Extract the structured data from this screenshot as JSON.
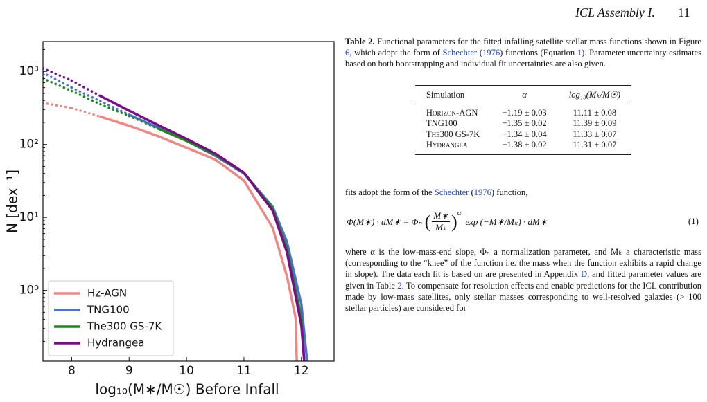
{
  "header": {
    "title": "ICL Assembly I.",
    "page": "11"
  },
  "chart_data": {
    "type": "line",
    "xlabel": "log₁₀(M∗/M☉) Before Infall",
    "ylabel": "N [dex⁻¹]",
    "xlim": [
      7.5,
      12.57
    ],
    "ylim": [
      0.107,
      2570
    ],
    "ylog": true,
    "xticks": [
      8,
      9,
      10,
      11,
      12
    ],
    "yticks": [
      {
        "value": 1,
        "label": "10⁰"
      },
      {
        "value": 10,
        "label": "10¹"
      },
      {
        "value": 100,
        "label": "10²"
      },
      {
        "value": 1000,
        "label": "10³"
      }
    ],
    "legend": "lower left",
    "series": [
      {
        "name": "Hz-AGN",
        "color": "#ee8884",
        "solid_from": 8.5,
        "x": [
          7.5,
          8,
          8.5,
          9,
          9.5,
          10,
          10.5,
          11,
          11.5,
          11.75,
          11.9,
          11.92
        ],
        "values": [
          370,
          315,
          240,
          180,
          130,
          90,
          62,
          32,
          7.2,
          1.55,
          0.42,
          0.107
        ]
      },
      {
        "name": "TNG100",
        "color": "#4a6fdc",
        "solid_from": 9,
        "x": [
          7.5,
          8,
          8.5,
          9,
          9.5,
          10,
          10.5,
          11,
          11.5,
          11.75,
          12,
          12.1
        ],
        "values": [
          960,
          600,
          390,
          255,
          170,
          112,
          70,
          40,
          14,
          4.6,
          0.64,
          0.107
        ]
      },
      {
        "name": "The300 GS-7K",
        "color": "#1a8a1a",
        "solid_from": 9.5,
        "x": [
          7.5,
          8,
          8.5,
          9,
          9.5,
          10,
          10.5,
          11,
          11.5,
          11.75,
          12,
          12.05
        ],
        "values": [
          800,
          540,
          355,
          245,
          165,
          112,
          72,
          41,
          13.3,
          3.7,
          0.42,
          0.107
        ]
      },
      {
        "name": "Hydrangea",
        "color": "#7a0a85",
        "solid_from": 8.5,
        "x": [
          7.5,
          8,
          8.5,
          9,
          9.5,
          10,
          10.5,
          11,
          11.5,
          11.75,
          12,
          12.05
        ],
        "values": [
          1100,
          750,
          460,
          290,
          185,
          119,
          75,
          41,
          12.4,
          3.3,
          0.33,
          0.107
        ]
      }
    ]
  },
  "caption": {
    "label": "Table 2.",
    "runs": [
      "Functional parameters for the fitted infalling satellite stellar mass functions shown in Figure ",
      "6",
      ", which adopt the form of ",
      "Schechter",
      " (",
      "1976",
      ") functions (Equation ",
      "1",
      "). Parameter uncertainty estimates based on both bootstrapping and individual fit uncertainties are also given."
    ]
  },
  "table": {
    "columns": [
      "Simulation",
      "α",
      "log₁₀(Mₖ/M☉)"
    ],
    "rows": [
      [
        "Horizon-AGN",
        "−1.19 ± 0.03",
        "11.11 ± 0.08"
      ],
      [
        "TNG100",
        "−1.35 ± 0.02",
        "11.39 ± 0.09"
      ],
      [
        "The300 GS-7K",
        "−1.34 ± 0.04",
        "11.33 ± 0.07"
      ],
      [
        "Hydrangea",
        "−1.38 ± 0.02",
        "11.31 ± 0.07"
      ]
    ]
  },
  "paragraph1": {
    "runs": [
      "fits adopt the form of the ",
      "Schechter",
      " (",
      "1976",
      ") function,"
    ]
  },
  "equation": {
    "lhs": "Φ(M∗) · dM∗ = Φₙ",
    "numerator": "M∗",
    "denominator": "Mₖ",
    "exponent": "α",
    "rhs": "exp (−M∗/Mₖ) · dM∗",
    "number": "(1)"
  },
  "paragraph2": {
    "runs": [
      "where α is the low-mass-end slope, Φₙ a normalization parameter, and Mₖ a characteristic mass (corresponding to the “knee” of the function i.e. the mass when the function exhibits a rapid change in slope). The data each fit is based on are presented in Appendix ",
      "D",
      ", and fitted parameter values are given in Table ",
      "2",
      ". To compensate for resolution effects and enable predictions for the ICL contribution made by low-mass satellites, only stellar masses corresponding to well-resolved galaxies (> 100 stellar particles) are considered for"
    ]
  }
}
